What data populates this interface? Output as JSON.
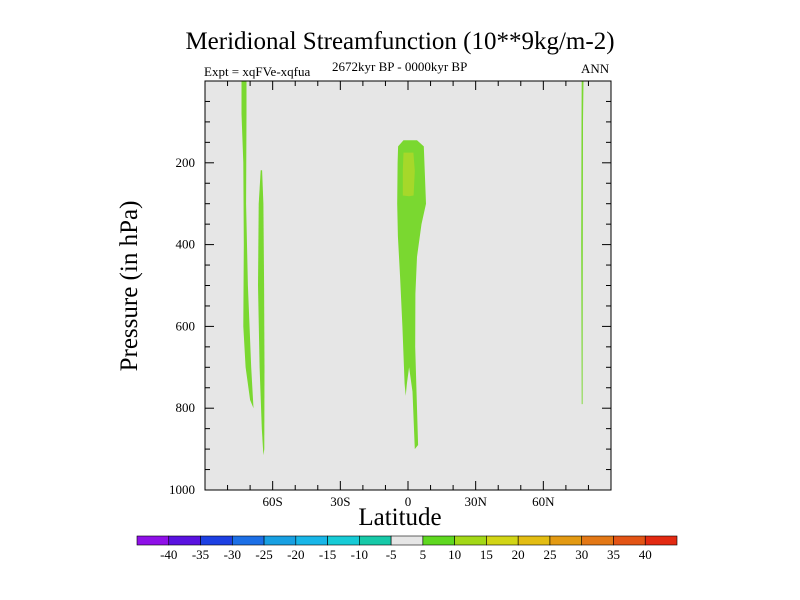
{
  "chart_data": {
    "type": "contour",
    "title": "Meridional Streamfunction (10**9kg/m-2)",
    "subtitle_left": "Expt = xqFVe-xqfua",
    "subtitle_center": "2672kyr BP - 0000kyr BP",
    "subtitle_right": "ANN",
    "xlabel": "Latitude",
    "ylabel": "Pressure (in hPa)",
    "xlim": [
      -90,
      90
    ],
    "ylim": [
      1000,
      0
    ],
    "xticks": [
      {
        "value": -60,
        "label": "60S"
      },
      {
        "value": -30,
        "label": "30S"
      },
      {
        "value": 0,
        "label": "0"
      },
      {
        "value": 30,
        "label": "30N"
      },
      {
        "value": 60,
        "label": "60N"
      }
    ],
    "yticks": [
      {
        "value": 200,
        "label": "200"
      },
      {
        "value": 400,
        "label": "400"
      },
      {
        "value": 600,
        "label": "600"
      },
      {
        "value": 800,
        "label": "800"
      },
      {
        "value": 1000,
        "label": "1000"
      }
    ],
    "background_color": "#e6e6e6",
    "colorbar": {
      "levels": [
        "-40",
        "-35",
        "-30",
        "-25",
        "-20",
        "-15",
        "-10",
        "-5",
        "5",
        "10",
        "15",
        "20",
        "25",
        "30",
        "35",
        "40"
      ],
      "colors": [
        "#8f10e8",
        "#5a12e0",
        "#1d40e3",
        "#1c6fe6",
        "#18a0e2",
        "#18b6e8",
        "#17cbd6",
        "#17c9a8",
        "#e6e6e6",
        "#5fd820",
        "#a3d817",
        "#d2d516",
        "#e3bd13",
        "#e39a13",
        "#e37816",
        "#e35415",
        "#e32a12"
      ]
    },
    "regions": [
      {
        "name": "sh-high-lat-upper",
        "level": "5 to 10",
        "color": "#7ad830",
        "polygon": [
          [
            -73.8,
            0
          ],
          [
            -71.6,
            0
          ],
          [
            -71.6,
            80
          ],
          [
            -71.8,
            300
          ],
          [
            -71.0,
            500
          ],
          [
            -69.5,
            700
          ],
          [
            -68.5,
            800
          ],
          [
            -70.0,
            780
          ],
          [
            -72.0,
            700
          ],
          [
            -73.0,
            600
          ],
          [
            -72.8,
            400
          ],
          [
            -73.0,
            200
          ],
          [
            -73.8,
            80
          ]
        ]
      },
      {
        "name": "sh-high-lat-deep",
        "level": "5 to 10",
        "color": "#7ad830",
        "polygon": [
          [
            -65.3,
            218
          ],
          [
            -64.7,
            218
          ],
          [
            -64.1,
            300
          ],
          [
            -63.8,
            500
          ],
          [
            -63.6,
            700
          ],
          [
            -63.7,
            900
          ],
          [
            -64.1,
            915
          ],
          [
            -64.8,
            850
          ],
          [
            -65.8,
            700
          ],
          [
            -66.5,
            500
          ],
          [
            -66.2,
            300
          ]
        ]
      },
      {
        "name": "equatorial-cell",
        "level": "5 to 10",
        "color": "#7ad830",
        "polygon": [
          [
            -4.4,
            160
          ],
          [
            -2.0,
            145
          ],
          [
            4.0,
            145
          ],
          [
            7.0,
            160
          ],
          [
            8.0,
            300
          ],
          [
            6.0,
            350
          ],
          [
            4.0,
            430
          ],
          [
            3.3,
            520
          ],
          [
            3.2,
            650
          ],
          [
            4.0,
            800
          ],
          [
            4.5,
            890
          ],
          [
            3.0,
            900
          ],
          [
            2.0,
            760
          ],
          [
            0.5,
            700
          ],
          [
            -0.5,
            740
          ],
          [
            -1.0,
            770
          ],
          [
            -1.5,
            740
          ],
          [
            -2.5,
            600
          ],
          [
            -3.5,
            480
          ],
          [
            -4.5,
            380
          ],
          [
            -4.8,
            300
          ],
          [
            -4.6,
            200
          ]
        ]
      },
      {
        "name": "equatorial-core",
        "level": "10 to 15",
        "color": "#a6d82a",
        "polygon": [
          [
            -2.0,
            175
          ],
          [
            2.4,
            175
          ],
          [
            3.0,
            220
          ],
          [
            2.5,
            280
          ],
          [
            0.5,
            282
          ],
          [
            -2.3,
            280
          ],
          [
            -2.3,
            220
          ]
        ]
      },
      {
        "name": "nh-high-lat-sliver",
        "level": "5 to 10",
        "color": "#7ad830",
        "polygon": [
          [
            77.0,
            0
          ],
          [
            77.8,
            0
          ],
          [
            77.6,
            100
          ],
          [
            77.5,
            400
          ],
          [
            77.4,
            790
          ],
          [
            77.0,
            790
          ],
          [
            76.8,
            400
          ],
          [
            76.9,
            100
          ]
        ]
      }
    ]
  }
}
